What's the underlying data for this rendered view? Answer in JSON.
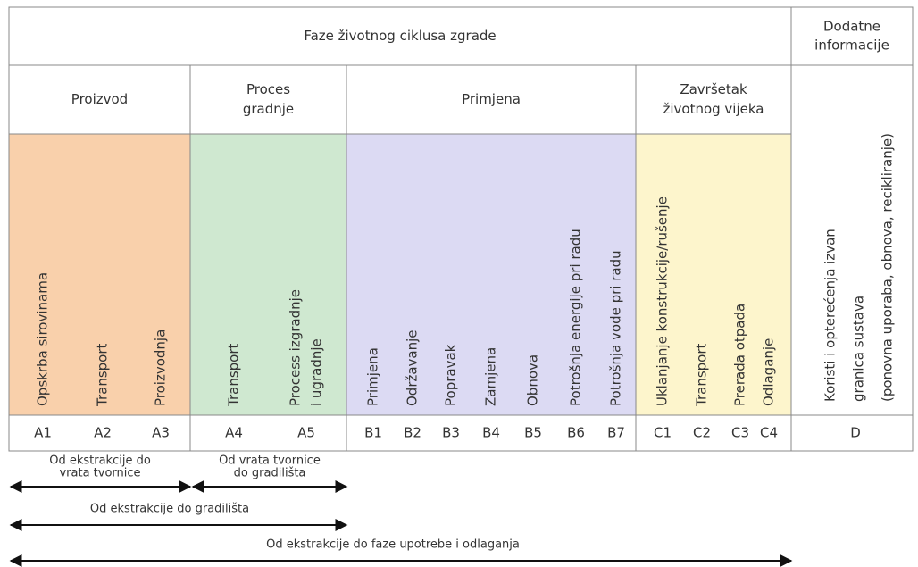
{
  "header": {
    "title": "Faze životnog ciklusa zgrade",
    "extra": [
      "Dodatne",
      "informacije"
    ]
  },
  "stages": [
    {
      "name": [
        "Proizvod"
      ],
      "modules": [
        {
          "label": [
            "Opskrba sirovinama"
          ],
          "code": "A1"
        },
        {
          "label": [
            "Transport"
          ],
          "code": "A2"
        },
        {
          "label": [
            "Proizvodnja"
          ],
          "code": "A3"
        }
      ]
    },
    {
      "name": [
        "Proces",
        "gradnje"
      ],
      "modules": [
        {
          "label": [
            "Transport"
          ],
          "code": "A4"
        },
        {
          "label": [
            "Process izgradnje",
            "i ugradnje"
          ],
          "code": "A5"
        }
      ]
    },
    {
      "name": [
        "Primjena"
      ],
      "modules": [
        {
          "label": [
            "Primjena"
          ],
          "code": "B1"
        },
        {
          "label": [
            "Održavanje"
          ],
          "code": "B2"
        },
        {
          "label": [
            "Popravak"
          ],
          "code": "B3"
        },
        {
          "label": [
            "Zamjena"
          ],
          "code": "B4"
        },
        {
          "label": [
            "Obnova"
          ],
          "code": "B5"
        },
        {
          "label": [
            "Potrošnja energije pri radu"
          ],
          "code": "B6"
        },
        {
          "label": [
            "Potrošnja vode pri radu"
          ],
          "code": "B7"
        }
      ]
    },
    {
      "name": [
        "Završetak",
        "životnog vijeka"
      ],
      "modules": [
        {
          "label": [
            "Uklanjanje konstrukcije/rušenje"
          ],
          "code": "C1"
        },
        {
          "label": [
            "Transport"
          ],
          "code": "C2"
        },
        {
          "label": [
            "Prerada otpada"
          ],
          "code": "C3"
        },
        {
          "label": [
            "Odlaganje"
          ],
          "code": "C4"
        }
      ]
    }
  ],
  "extra_module": {
    "label": [
      "Koristi i opterećenja izvan",
      "granica sustava",
      "(ponovna uporaba, obnova, recikliranje)"
    ],
    "code": "D"
  },
  "ranges": [
    {
      "label": [
        "Od ekstrakcije do",
        "vrata tvornice"
      ]
    },
    {
      "label": [
        "Od vrata tvornice",
        "do gradilišta"
      ]
    },
    {
      "label": [
        "Od ekstrakcije do gradilišta"
      ]
    },
    {
      "label": [
        "Od ekstrakcije do faze upotrebe i odlaganja"
      ]
    }
  ]
}
